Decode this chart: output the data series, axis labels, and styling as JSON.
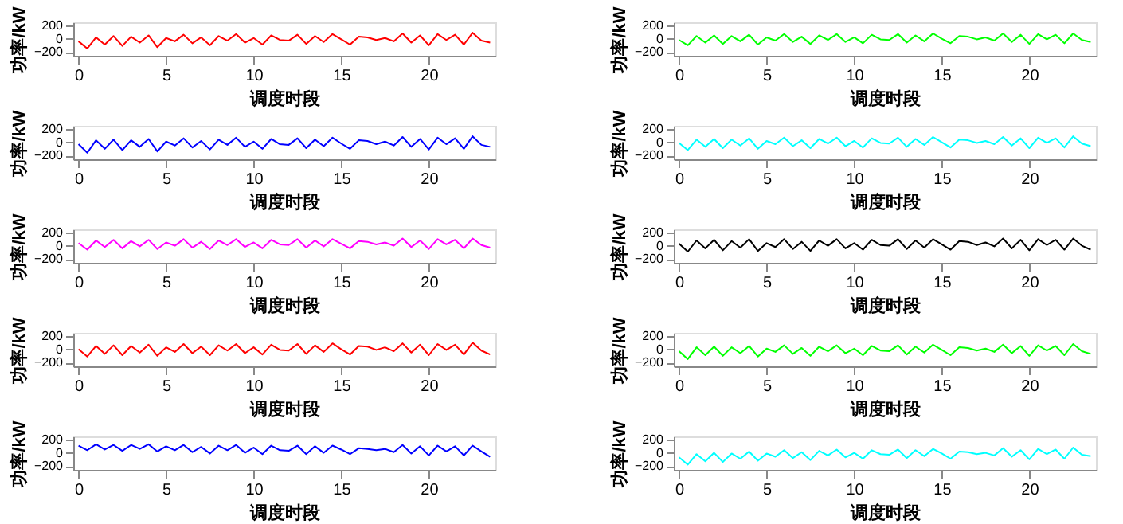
{
  "chart_data": [
    {
      "type": "line",
      "xlabel": "调度时段",
      "ylabel": "功率/kW",
      "xlim": [
        -0.3,
        23.8
      ],
      "ylim": [
        -260,
        250
      ],
      "xticks": [
        0,
        5,
        10,
        15,
        20
      ],
      "yticks": [
        -200,
        0,
        200
      ],
      "grid": false,
      "x": [
        0,
        0.5,
        1,
        1.5,
        2,
        2.5,
        3,
        3.5,
        4,
        4.5,
        5,
        5.5,
        6,
        6.5,
        7,
        7.5,
        8,
        8.5,
        9,
        9.5,
        10,
        10.5,
        11,
        11.5,
        12,
        12.5,
        13,
        13.5,
        14,
        14.5,
        15,
        15.5,
        16,
        16.5,
        17,
        17.5,
        18,
        18.5,
        19,
        19.5,
        20,
        20.5,
        21,
        21.5,
        22,
        22.5,
        23,
        23.5
      ],
      "series": [
        {
          "color": "#ff0000",
          "values": [
            -40,
            -150,
            20,
            -90,
            40,
            -110,
            30,
            -60,
            50,
            -130,
            10,
            -40,
            60,
            -70,
            20,
            -100,
            40,
            -30,
            70,
            -60,
            10,
            -90,
            50,
            -20,
            -30,
            60,
            -80,
            40,
            -50,
            70,
            -10,
            -90,
            30,
            20,
            -20,
            10,
            -40,
            80,
            -60,
            50,
            -100,
            70,
            -20,
            60,
            -90,
            90,
            -30,
            -60
          ]
        }
      ]
    },
    {
      "type": "line",
      "xlabel": "调度时段",
      "ylabel": "功率/kW",
      "xlim": [
        -0.3,
        23.8
      ],
      "ylim": [
        -260,
        250
      ],
      "xticks": [
        0,
        5,
        10,
        15,
        20
      ],
      "yticks": [
        -200,
        0,
        200
      ],
      "grid": false,
      "x": [
        0,
        0.5,
        1,
        1.5,
        2,
        2.5,
        3,
        3.5,
        4,
        4.5,
        5,
        5.5,
        6,
        6.5,
        7,
        7.5,
        8,
        8.5,
        9,
        9.5,
        10,
        10.5,
        11,
        11.5,
        12,
        12.5,
        13,
        13.5,
        14,
        14.5,
        15,
        15.5,
        16,
        16.5,
        17,
        17.5,
        18,
        18.5,
        19,
        19.5,
        20,
        20.5,
        21,
        21.5,
        22,
        22.5,
        23,
        23.5
      ],
      "series": [
        {
          "color": "#00ff00",
          "values": [
            -20,
            -100,
            40,
            -60,
            50,
            -80,
            40,
            -40,
            60,
            -90,
            20,
            -30,
            70,
            -50,
            30,
            -80,
            50,
            -20,
            70,
            -50,
            20,
            -70,
            60,
            -10,
            -20,
            70,
            -60,
            50,
            -40,
            80,
            0,
            -70,
            40,
            30,
            -10,
            20,
            -30,
            80,
            -50,
            60,
            -80,
            70,
            -10,
            60,
            -70,
            80,
            -20,
            -50
          ]
        }
      ]
    },
    {
      "type": "line",
      "xlabel": "调度时段",
      "ylabel": "功率/kW",
      "xlim": [
        -0.3,
        23.8
      ],
      "ylim": [
        -260,
        250
      ],
      "xticks": [
        0,
        5,
        10,
        15,
        20
      ],
      "yticks": [
        -200,
        0,
        200
      ],
      "grid": false,
      "x": [
        0,
        0.5,
        1,
        1.5,
        2,
        2.5,
        3,
        3.5,
        4,
        4.5,
        5,
        5.5,
        6,
        6.5,
        7,
        7.5,
        8,
        8.5,
        9,
        9.5,
        10,
        10.5,
        11,
        11.5,
        12,
        12.5,
        13,
        13.5,
        14,
        14.5,
        15,
        15.5,
        16,
        16.5,
        17,
        17.5,
        18,
        18.5,
        19,
        19.5,
        20,
        20.5,
        21,
        21.5,
        22,
        22.5,
        23,
        23.5
      ],
      "series": [
        {
          "color": "#0000ff",
          "values": [
            -30,
            -160,
            30,
            -100,
            40,
            -120,
            30,
            -70,
            50,
            -140,
            10,
            -50,
            60,
            -80,
            20,
            -110,
            40,
            -40,
            70,
            -70,
            10,
            -100,
            50,
            -30,
            -40,
            60,
            -90,
            40,
            -60,
            70,
            -20,
            -100,
            30,
            20,
            -30,
            10,
            -50,
            80,
            -70,
            50,
            -110,
            70,
            -30,
            60,
            -100,
            90,
            -40,
            -70
          ]
        }
      ]
    },
    {
      "type": "line",
      "xlabel": "调度时段",
      "ylabel": "功率/kW",
      "xlim": [
        -0.3,
        23.8
      ],
      "ylim": [
        -260,
        250
      ],
      "xticks": [
        0,
        5,
        10,
        15,
        20
      ],
      "yticks": [
        -200,
        0,
        200
      ],
      "grid": false,
      "x": [
        0,
        0.5,
        1,
        1.5,
        2,
        2.5,
        3,
        3.5,
        4,
        4.5,
        5,
        5.5,
        6,
        6.5,
        7,
        7.5,
        8,
        8.5,
        9,
        9.5,
        10,
        10.5,
        11,
        11.5,
        12,
        12.5,
        13,
        13.5,
        14,
        14.5,
        15,
        15.5,
        16,
        16.5,
        17,
        17.5,
        18,
        18.5,
        19,
        19.5,
        20,
        20.5,
        21,
        21.5,
        22,
        22.5,
        23,
        23.5
      ],
      "series": [
        {
          "color": "#00ffff",
          "values": [
            -10,
            -120,
            40,
            -70,
            50,
            -90,
            40,
            -50,
            60,
            -100,
            20,
            -30,
            70,
            -60,
            30,
            -90,
            50,
            -20,
            70,
            -60,
            20,
            -80,
            60,
            -10,
            -20,
            70,
            -70,
            50,
            -40,
            80,
            0,
            -80,
            40,
            30,
            -10,
            20,
            -30,
            80,
            -50,
            60,
            -90,
            70,
            -10,
            60,
            -80,
            90,
            -20,
            -60
          ]
        }
      ]
    },
    {
      "type": "line",
      "xlabel": "调度时段",
      "ylabel": "功率/kW",
      "xlim": [
        -0.3,
        23.8
      ],
      "ylim": [
        -260,
        250
      ],
      "xticks": [
        0,
        5,
        10,
        15,
        20
      ],
      "yticks": [
        -200,
        0,
        200
      ],
      "grid": false,
      "x": [
        0,
        0.5,
        1,
        1.5,
        2,
        2.5,
        3,
        3.5,
        4,
        4.5,
        5,
        5.5,
        6,
        6.5,
        7,
        7.5,
        8,
        8.5,
        9,
        9.5,
        10,
        10.5,
        11,
        11.5,
        12,
        12.5,
        13,
        13.5,
        14,
        14.5,
        15,
        15.5,
        16,
        16.5,
        17,
        17.5,
        18,
        18.5,
        19,
        19.5,
        20,
        20.5,
        21,
        21.5,
        22,
        22.5,
        23,
        23.5
      ],
      "series": [
        {
          "color": "#ff00ff",
          "values": [
            40,
            -60,
            80,
            -20,
            90,
            -40,
            70,
            -10,
            90,
            -50,
            50,
            0,
            100,
            -30,
            60,
            -50,
            80,
            10,
            100,
            -20,
            50,
            -40,
            90,
            20,
            10,
            100,
            -30,
            80,
            -10,
            100,
            30,
            -40,
            70,
            60,
            20,
            50,
            0,
            110,
            -20,
            80,
            -50,
            100,
            20,
            90,
            -40,
            110,
            10,
            -30
          ]
        }
      ]
    },
    {
      "type": "line",
      "xlabel": "调度时段",
      "ylabel": "功率/kW",
      "xlim": [
        -0.3,
        23.8
      ],
      "ylim": [
        -260,
        250
      ],
      "xticks": [
        0,
        5,
        10,
        15,
        20
      ],
      "yticks": [
        -200,
        0,
        200
      ],
      "grid": false,
      "x": [
        0,
        0.5,
        1,
        1.5,
        2,
        2.5,
        3,
        3.5,
        4,
        4.5,
        5,
        5.5,
        6,
        6.5,
        7,
        7.5,
        8,
        8.5,
        9,
        9.5,
        10,
        10.5,
        11,
        11.5,
        12,
        12.5,
        13,
        13.5,
        14,
        14.5,
        15,
        15.5,
        16,
        16.5,
        17,
        17.5,
        18,
        18.5,
        19,
        19.5,
        20,
        20.5,
        21,
        21.5,
        22,
        22.5,
        23,
        23.5
      ],
      "series": [
        {
          "color": "#000000",
          "values": [
            30,
            -90,
            80,
            -40,
            90,
            -70,
            70,
            -30,
            100,
            -80,
            40,
            -20,
            100,
            -50,
            60,
            -80,
            80,
            0,
            100,
            -40,
            40,
            -60,
            90,
            10,
            0,
            100,
            -50,
            80,
            -30,
            100,
            20,
            -60,
            70,
            60,
            10,
            50,
            -10,
            110,
            -40,
            90,
            -70,
            100,
            10,
            90,
            -60,
            110,
            0,
            -60
          ]
        }
      ]
    },
    {
      "type": "line",
      "xlabel": "调度时段",
      "ylabel": "功率/kW",
      "xlim": [
        -0.3,
        23.8
      ],
      "ylim": [
        -260,
        250
      ],
      "xticks": [
        0,
        5,
        10,
        15,
        20
      ],
      "yticks": [
        -200,
        0,
        200
      ],
      "grid": false,
      "x": [
        0,
        0.5,
        1,
        1.5,
        2,
        2.5,
        3,
        3.5,
        4,
        4.5,
        5,
        5.5,
        6,
        6.5,
        7,
        7.5,
        8,
        8.5,
        9,
        9.5,
        10,
        10.5,
        11,
        11.5,
        12,
        12.5,
        13,
        13.5,
        14,
        14.5,
        15,
        15.5,
        16,
        16.5,
        17,
        17.5,
        18,
        18.5,
        19,
        19.5,
        20,
        20.5,
        21,
        21.5,
        22,
        22.5,
        23,
        23.5
      ],
      "series": [
        {
          "color": "#ff0000",
          "values": [
            0,
            -110,
            50,
            -70,
            60,
            -90,
            50,
            -50,
            70,
            -100,
            30,
            -40,
            80,
            -60,
            40,
            -90,
            60,
            -20,
            80,
            -60,
            30,
            -80,
            70,
            -10,
            -20,
            80,
            -70,
            60,
            -40,
            90,
            0,
            -80,
            50,
            40,
            -10,
            30,
            -30,
            90,
            -50,
            70,
            -90,
            80,
            -10,
            70,
            -80,
            100,
            -20,
            -80
          ]
        }
      ]
    },
    {
      "type": "line",
      "xlabel": "调度时段",
      "ylabel": "功率/kW",
      "xlim": [
        -0.3,
        23.8
      ],
      "ylim": [
        -260,
        250
      ],
      "xticks": [
        0,
        5,
        10,
        15,
        20
      ],
      "yticks": [
        -200,
        0,
        200
      ],
      "grid": false,
      "x": [
        0,
        0.5,
        1,
        1.5,
        2,
        2.5,
        3,
        3.5,
        4,
        4.5,
        5,
        5.5,
        6,
        6.5,
        7,
        7.5,
        8,
        8.5,
        9,
        9.5,
        10,
        10.5,
        11,
        11.5,
        12,
        12.5,
        13,
        13.5,
        14,
        14.5,
        15,
        15.5,
        16,
        16.5,
        17,
        17.5,
        18,
        18.5,
        19,
        19.5,
        20,
        20.5,
        21,
        21.5,
        22,
        22.5,
        23,
        23.5
      ],
      "series": [
        {
          "color": "#00ff00",
          "values": [
            -30,
            -150,
            30,
            -90,
            40,
            -100,
            30,
            -60,
            50,
            -110,
            10,
            -40,
            60,
            -70,
            20,
            -100,
            40,
            -30,
            60,
            -60,
            10,
            -90,
            50,
            -20,
            -30,
            60,
            -80,
            40,
            -50,
            70,
            -10,
            -90,
            30,
            20,
            -20,
            10,
            -40,
            70,
            -60,
            50,
            -100,
            60,
            -20,
            50,
            -90,
            80,
            -30,
            -70
          ]
        }
      ]
    },
    {
      "type": "line",
      "xlabel": "调度时段",
      "ylabel": "功率/kW",
      "xlim": [
        -0.3,
        23.8
      ],
      "ylim": [
        -260,
        250
      ],
      "xticks": [
        0,
        5,
        10,
        15,
        20
      ],
      "yticks": [
        -200,
        0,
        200
      ],
      "grid": false,
      "x": [
        0,
        0.5,
        1,
        1.5,
        2,
        2.5,
        3,
        3.5,
        4,
        4.5,
        5,
        5.5,
        6,
        6.5,
        7,
        7.5,
        8,
        8.5,
        9,
        9.5,
        10,
        10.5,
        11,
        11.5,
        12,
        12.5,
        13,
        13.5,
        14,
        14.5,
        15,
        15.5,
        16,
        16.5,
        17,
        17.5,
        18,
        18.5,
        19,
        19.5,
        20,
        20.5,
        21,
        21.5,
        22,
        22.5,
        23,
        23.5
      ],
      "series": [
        {
          "color": "#0000ff",
          "values": [
            110,
            40,
            130,
            50,
            120,
            30,
            120,
            60,
            130,
            20,
            100,
            40,
            120,
            10,
            90,
            -10,
            110,
            40,
            120,
            0,
            80,
            -20,
            110,
            40,
            30,
            110,
            -20,
            100,
            0,
            110,
            50,
            -20,
            70,
            60,
            40,
            60,
            10,
            120,
            -10,
            100,
            -40,
            110,
            20,
            100,
            -40,
            110,
            20,
            -60
          ]
        }
      ]
    },
    {
      "type": "line",
      "xlabel": "调度时段",
      "ylabel": "功率/kW",
      "xlim": [
        -0.3,
        23.8
      ],
      "ylim": [
        -260,
        250
      ],
      "xticks": [
        0,
        5,
        10,
        15,
        20
      ],
      "yticks": [
        -200,
        0,
        200
      ],
      "grid": false,
      "x": [
        0,
        0.5,
        1,
        1.5,
        2,
        2.5,
        3,
        3.5,
        4,
        4.5,
        5,
        5.5,
        6,
        6.5,
        7,
        7.5,
        8,
        8.5,
        9,
        9.5,
        10,
        10.5,
        11,
        11.5,
        12,
        12.5,
        13,
        13.5,
        14,
        14.5,
        15,
        15.5,
        16,
        16.5,
        17,
        17.5,
        18,
        18.5,
        19,
        19.5,
        20,
        20.5,
        21,
        21.5,
        22,
        22.5,
        23,
        23.5
      ],
      "series": [
        {
          "color": "#00ffff",
          "values": [
            -70,
            -180,
            -20,
            -130,
            0,
            -140,
            -10,
            -90,
            20,
            -120,
            -10,
            -60,
            40,
            -80,
            10,
            -110,
            30,
            -40,
            50,
            -70,
            0,
            -90,
            40,
            -20,
            -30,
            50,
            -80,
            40,
            -50,
            60,
            -10,
            -90,
            20,
            10,
            -20,
            0,
            -40,
            70,
            -60,
            40,
            -100,
            60,
            -20,
            50,
            -90,
            80,
            -30,
            -50
          ]
        }
      ]
    }
  ]
}
